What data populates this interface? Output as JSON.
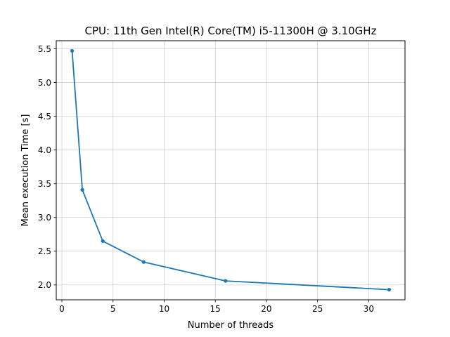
{
  "chart_data": {
    "type": "line",
    "title": "CPU: 11th Gen Intel(R) Core(TM) i5-11300H @ 3.10GHz",
    "xlabel": "Number of threads",
    "ylabel": "Mean execution Time [s]",
    "xlim": [
      -0.55,
      33.55
    ],
    "ylim": [
      1.78,
      5.62
    ],
    "xticks": [
      0,
      5,
      10,
      15,
      20,
      25,
      30
    ],
    "xtick_labels": [
      "0",
      "5",
      "10",
      "15",
      "20",
      "25",
      "30"
    ],
    "yticks": [
      2.0,
      2.5,
      3.0,
      3.5,
      4.0,
      4.5,
      5.0,
      5.5
    ],
    "ytick_labels": [
      "2.0",
      "2.5",
      "3.0",
      "3.5",
      "4.0",
      "4.5",
      "5.0",
      "5.5"
    ],
    "grid": true,
    "series": [
      {
        "color": "#1f77b4",
        "x": [
          1,
          2,
          4,
          8,
          16,
          32
        ],
        "y": [
          5.47,
          3.41,
          2.65,
          2.34,
          2.06,
          1.93
        ]
      }
    ]
  }
}
